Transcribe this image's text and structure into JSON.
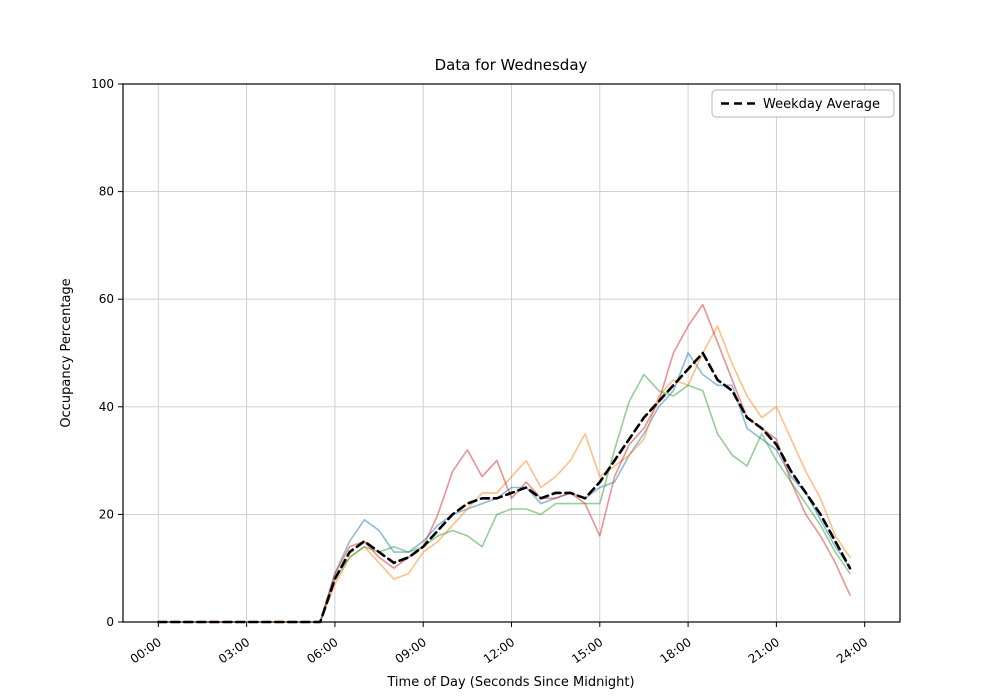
{
  "chart_data": {
    "type": "line",
    "title": "Data for Wednesday",
    "xlabel": "Time of Day (Seconds Since Midnight)",
    "ylabel": "Occupancy Percentage",
    "legend_label": "Weekday Average",
    "legend_position": "upper right",
    "grid": true,
    "grid_color": "#cccccc",
    "xlim_seconds": [
      0,
      86400
    ],
    "ylim": [
      0,
      100
    ],
    "y_ticks": [
      0,
      20,
      40,
      60,
      80,
      100
    ],
    "x_tick_seconds": [
      0,
      10800,
      21600,
      32400,
      43200,
      54000,
      64800,
      75600,
      86400
    ],
    "x_tick_labels": [
      "00:00",
      "03:00",
      "06:00",
      "09:00",
      "12:00",
      "15:00",
      "18:00",
      "21:00",
      "24:00"
    ],
    "x_seconds": [
      0,
      1800,
      3600,
      5400,
      7200,
      9000,
      10800,
      12600,
      14400,
      16200,
      18000,
      19800,
      21600,
      23400,
      25200,
      27000,
      28800,
      30600,
      32400,
      34200,
      36000,
      37800,
      39600,
      41400,
      43200,
      45000,
      46800,
      48600,
      50400,
      52200,
      54000,
      55800,
      57600,
      59400,
      61200,
      63000,
      64800,
      66600,
      68400,
      70200,
      72000,
      73800,
      75600,
      77400,
      79200,
      81000,
      82800,
      84600
    ],
    "series": [
      {
        "name": "day-line-blue",
        "color": "#1f77b4",
        "opacity": 0.5,
        "style": "solid",
        "width": 1.6,
        "values": [
          0,
          0,
          0,
          0,
          0,
          0,
          0,
          0,
          0,
          0,
          0,
          0,
          9,
          15,
          19,
          17,
          13,
          13,
          15,
          18,
          20,
          21,
          22,
          23,
          25,
          25,
          22,
          23,
          24,
          23,
          25,
          26,
          31,
          35,
          40,
          43,
          50,
          46,
          44,
          44,
          36,
          34,
          32,
          27,
          24,
          19,
          14,
          10
        ]
      },
      {
        "name": "day-line-orange",
        "color": "#ff7f0e",
        "opacity": 0.5,
        "style": "solid",
        "width": 1.6,
        "values": [
          0,
          0,
          0,
          0,
          0,
          0,
          0,
          0,
          0,
          0,
          0,
          0,
          7,
          12,
          14,
          11,
          8,
          9,
          13,
          15,
          18,
          21,
          24,
          24,
          27,
          30,
          25,
          27,
          30,
          35,
          27,
          29,
          31,
          34,
          42,
          45,
          44,
          50,
          55,
          48,
          42,
          38,
          40,
          34,
          28,
          23,
          16,
          12
        ]
      },
      {
        "name": "day-line-green",
        "color": "#2ca02c",
        "opacity": 0.5,
        "style": "solid",
        "width": 1.6,
        "values": [
          0,
          0,
          0,
          0,
          0,
          0,
          0,
          0,
          0,
          0,
          0,
          0,
          8,
          12,
          14,
          13,
          14,
          13,
          14,
          16,
          17,
          16,
          14,
          20,
          21,
          21,
          20,
          22,
          22,
          22,
          22,
          32,
          41,
          46,
          43,
          42,
          44,
          43,
          35,
          31,
          29,
          35,
          30,
          26,
          22,
          18,
          13,
          9
        ]
      },
      {
        "name": "day-line-red",
        "color": "#d62728",
        "opacity": 0.5,
        "style": "solid",
        "width": 1.6,
        "values": [
          0,
          0,
          0,
          0,
          0,
          0,
          0,
          0,
          0,
          0,
          0,
          0,
          9,
          14,
          15,
          12,
          10,
          12,
          14,
          20,
          28,
          32,
          27,
          30,
          23,
          26,
          23,
          23,
          24,
          22,
          16,
          27,
          33,
          36,
          41,
          50,
          55,
          59,
          52,
          45,
          38,
          36,
          34,
          26,
          20,
          16,
          11,
          5
        ]
      },
      {
        "name": "weekday-average",
        "label": "Weekday Average",
        "color": "#000000",
        "opacity": 1,
        "style": "dashed",
        "width": 2.6,
        "values": [
          0,
          0,
          0,
          0,
          0,
          0,
          0,
          0,
          0,
          0,
          0,
          0,
          8,
          13,
          15,
          13,
          11,
          12,
          14,
          17,
          20,
          22,
          23,
          23,
          24,
          25,
          23,
          24,
          24,
          23,
          26,
          30,
          34,
          38,
          41,
          44,
          47,
          50,
          45,
          43,
          38,
          36,
          33,
          28,
          24,
          20,
          15,
          10
        ]
      }
    ]
  }
}
